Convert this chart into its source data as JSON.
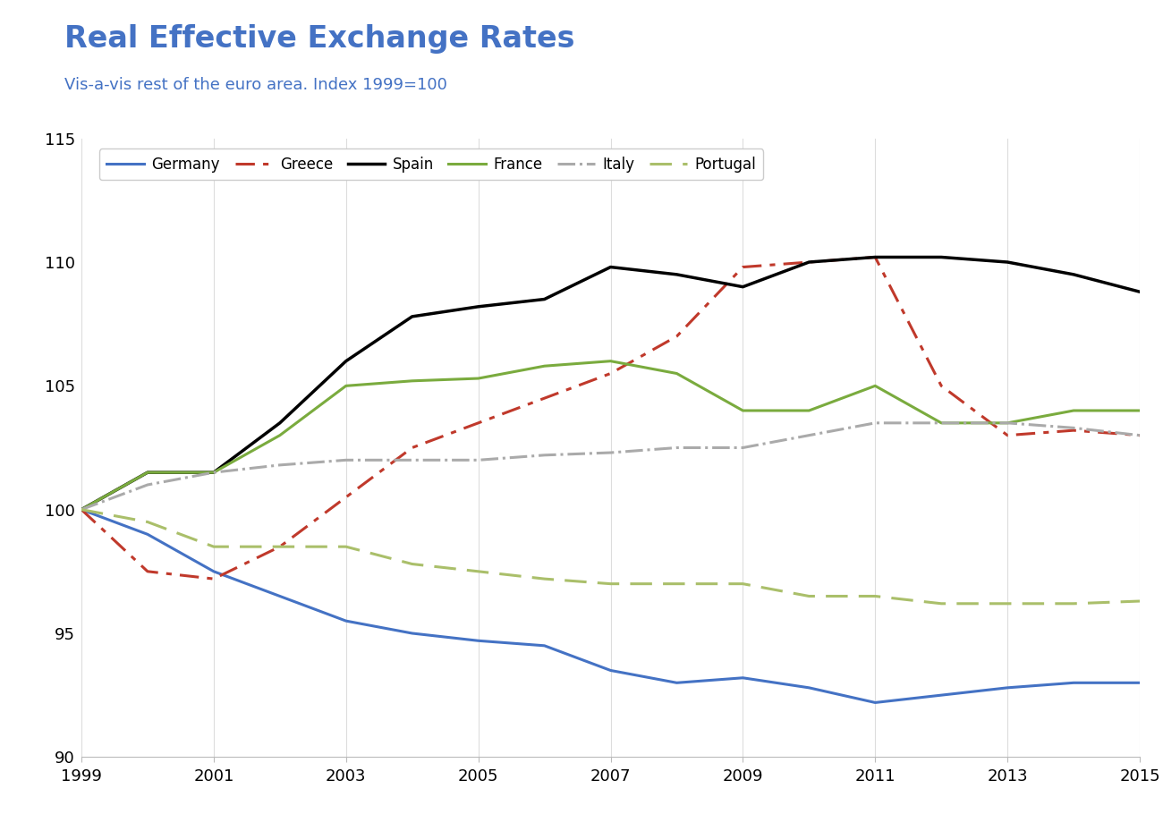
{
  "title": "Real Effective Exchange Rates",
  "subtitle": "Vis-a-vis rest of the euro area. Index 1999=100",
  "title_color": "#4472C4",
  "subtitle_color": "#4472C4",
  "x_years": [
    1999,
    2000,
    2001,
    2002,
    2003,
    2004,
    2005,
    2006,
    2007,
    2008,
    2009,
    2010,
    2011,
    2012,
    2013,
    2014,
    2015
  ],
  "xlim": [
    1999,
    2015
  ],
  "ylim": [
    90,
    115
  ],
  "yticks": [
    90,
    95,
    100,
    105,
    110,
    115
  ],
  "xticks": [
    1999,
    2001,
    2003,
    2005,
    2007,
    2009,
    2011,
    2013,
    2015
  ],
  "series": {
    "Germany": {
      "color": "#4472C4",
      "linestyle": "solid",
      "linewidth": 2.2,
      "values": [
        100,
        99,
        97.5,
        96.5,
        95.5,
        95.0,
        94.7,
        94.5,
        93.5,
        93.0,
        93.2,
        92.8,
        92.2,
        92.5,
        92.8,
        93.0,
        93.0
      ]
    },
    "Greece": {
      "color": "#C0392B",
      "linestyle": "dashed",
      "linewidth": 2.2,
      "dashes": [
        7,
        3,
        2,
        3
      ],
      "values": [
        100,
        97.5,
        97.2,
        98.5,
        100.5,
        102.5,
        103.5,
        104.5,
        105.5,
        107.0,
        109.8,
        110.0,
        110.2,
        105.0,
        103.0,
        103.2,
        103.0
      ]
    },
    "Spain": {
      "color": "#000000",
      "linestyle": "solid",
      "linewidth": 2.5,
      "values": [
        100,
        101.5,
        101.5,
        103.5,
        106.0,
        107.8,
        108.2,
        108.5,
        109.8,
        109.5,
        109.0,
        110.0,
        110.2,
        110.2,
        110.0,
        109.5,
        108.8
      ]
    },
    "France": {
      "color": "#7AAB3E",
      "linestyle": "solid",
      "linewidth": 2.2,
      "values": [
        100,
        101.5,
        101.5,
        103.0,
        105.0,
        105.2,
        105.3,
        105.8,
        106.0,
        105.5,
        104.0,
        104.0,
        105.0,
        103.5,
        103.5,
        104.0,
        104.0
      ]
    },
    "Italy": {
      "color": "#AAAAAA",
      "linestyle": "dashdot",
      "linewidth": 2.2,
      "values": [
        100,
        101.0,
        101.5,
        101.8,
        102.0,
        102.0,
        102.0,
        102.2,
        102.3,
        102.5,
        102.5,
        103.0,
        103.5,
        103.5,
        103.5,
        103.3,
        103.0
      ]
    },
    "Portugal": {
      "color": "#AABF6A",
      "linestyle": "dashed",
      "linewidth": 2.2,
      "dashes": [
        8,
        4
      ],
      "values": [
        100,
        99.5,
        98.5,
        98.5,
        98.5,
        97.8,
        97.5,
        97.2,
        97.0,
        97.0,
        97.0,
        96.5,
        96.5,
        96.2,
        96.2,
        96.2,
        96.3
      ]
    }
  },
  "background_color": "#FFFFFF",
  "plot_background": "#FFFFFF",
  "grid_color": "#DDDDDD",
  "legend_fontsize": 12,
  "title_fontsize": 24,
  "subtitle_fontsize": 13,
  "tick_fontsize": 13
}
